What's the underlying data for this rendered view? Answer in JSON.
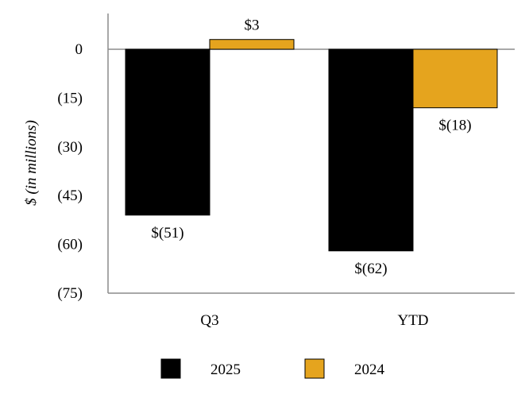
{
  "chart_data": {
    "type": "bar",
    "title": "",
    "xlabel": "",
    "ylabel": "$ (in millions)",
    "categories": [
      "Q3",
      "YTD"
    ],
    "series": [
      {
        "name": "2025",
        "values": [
          -51,
          -62
        ],
        "labels": [
          "$(51)",
          "$(62)"
        ],
        "color": "#000000"
      },
      {
        "name": "2024",
        "values": [
          3,
          -18
        ],
        "labels": [
          "$3",
          "$(18)"
        ],
        "color": "#E5A41E"
      }
    ],
    "ylim": [
      -75,
      0
    ],
    "yticks": [
      0,
      -15,
      -30,
      -45,
      -60,
      -75
    ],
    "ytick_labels": [
      "0",
      "(15)",
      "(30)",
      "(45)",
      "(60)",
      "(75)"
    ],
    "grid": false,
    "legend_position": "bottom"
  }
}
